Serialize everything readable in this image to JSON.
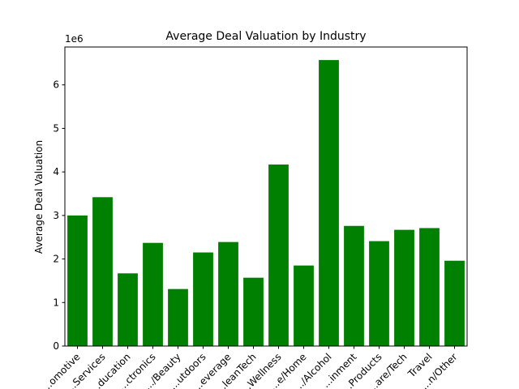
{
  "chart_data": {
    "type": "bar",
    "title": "Average Deal Valuation by Industry",
    "xlabel": "",
    "ylabel": "Average Deal Valuation",
    "scale_label": "1e6",
    "categories": [
      "...omotive",
      "...Services",
      "...ducation",
      "...ctronics",
      ".../Beauty",
      "...utdoors",
      "...everage",
      "...leanTech",
      "...Wellness",
      "...e/Home",
      ".../Alcohol",
      "...inment",
      "...Products",
      "...are/Tech",
      "Travel",
      "...n/Other"
    ],
    "values": [
      3.0,
      3.42,
      1.67,
      2.37,
      1.31,
      2.15,
      2.39,
      1.57,
      4.17,
      1.85,
      6.57,
      2.76,
      2.41,
      2.67,
      2.71,
      1.96
    ],
    "ylim": [
      0,
      6.87
    ],
    "yticks": [
      0,
      1,
      2,
      3,
      4,
      5,
      6
    ],
    "ytick_labels": [
      "0",
      "1",
      "2",
      "3",
      "4",
      "5",
      "6"
    ],
    "bar_color": "#008000",
    "grid": false,
    "legend": false
  }
}
